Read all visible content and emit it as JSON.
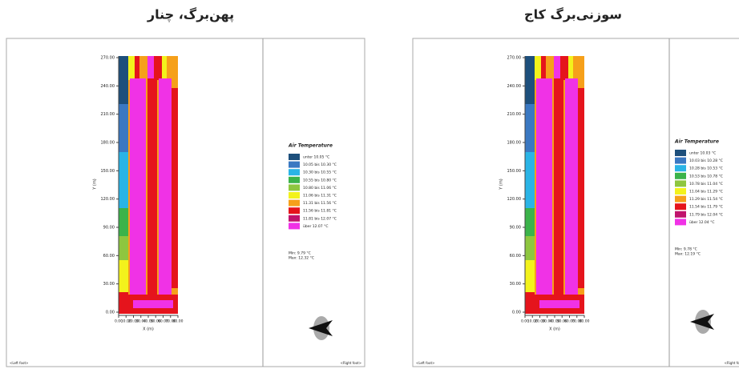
{
  "panels": [
    {
      "title": "پهن‌برگ، چنار",
      "legend_title": "Air Temperature",
      "legend": [
        "unter 10.05 °C",
        "10.05 bis 10.30 °C",
        "10.30 bis 10.55 °C",
        "10.55 bis 10.80 °C",
        "10.80 bis 11.06 °C",
        "11.06 bis 11.31 °C",
        "11.31 bis 11.56 °C",
        "11.56 bis 11.81 °C",
        "11.81 bis 12.07 °C",
        "über 12.07 °C"
      ],
      "legend_colors": [
        "#1d4f7c",
        "#3a78c2",
        "#2ab4e6",
        "#3bb34a",
        "#8ec63f",
        "#f3f21c",
        "#f6a01a",
        "#e5141c",
        "#c0136c",
        "#f032e6"
      ],
      "min": "Min: 9.79 °C",
      "max": "Max: 12.32 °C",
      "y_label": "Y (m)",
      "x_label": "X (m)",
      "y_ticks": [
        "0.00",
        "30.00",
        "60.00",
        "90.00",
        "120.00",
        "150.00",
        "180.00",
        "210.00",
        "240.00",
        "270.00"
      ],
      "x_ticks": [
        "0.00",
        "10.00",
        "20.00",
        "30.00",
        "40.00",
        "50.00",
        "60.00",
        "70.00",
        "80.00"
      ],
      "footer_left": "<Left foot>",
      "footer_right": "<Right foot>"
    },
    {
      "title": "سوزنی‌برگ کاج",
      "legend_title": "Air Temperature",
      "legend": [
        "unter 10.03 °C",
        "10.03 bis 10.28 °C",
        "10.28 bis 10.53 °C",
        "10.53 bis 10.78 °C",
        "10.78 bis 11.04 °C",
        "11.04 bis 11.29 °C",
        "11.29 bis 11.54 °C",
        "11.54 bis 11.79 °C",
        "11.79 bis 12.04 °C",
        "über 12.04 °C"
      ],
      "legend_colors": [
        "#1d4f7c",
        "#3a78c2",
        "#2ab4e6",
        "#3bb34a",
        "#8ec63f",
        "#f3f21c",
        "#f6a01a",
        "#e5141c",
        "#c0136c",
        "#f032e6"
      ],
      "min": "Min: 9.78 °C",
      "max": "Max: 12.19 °C",
      "y_label": "Y (m)",
      "x_label": "X (m)",
      "y_ticks": [
        "0.00",
        "30.00",
        "60.00",
        "90.00",
        "120.00",
        "150.00",
        "180.00",
        "210.00",
        "240.00",
        "270.00"
      ],
      "x_ticks": [
        "0.00",
        "10.00",
        "20.00",
        "30.00",
        "40.00",
        "50.00",
        "60.00",
        "70.00",
        "80.00"
      ],
      "footer_left": "<Left foot>",
      "footer_right": "<Right foot>"
    }
  ]
}
